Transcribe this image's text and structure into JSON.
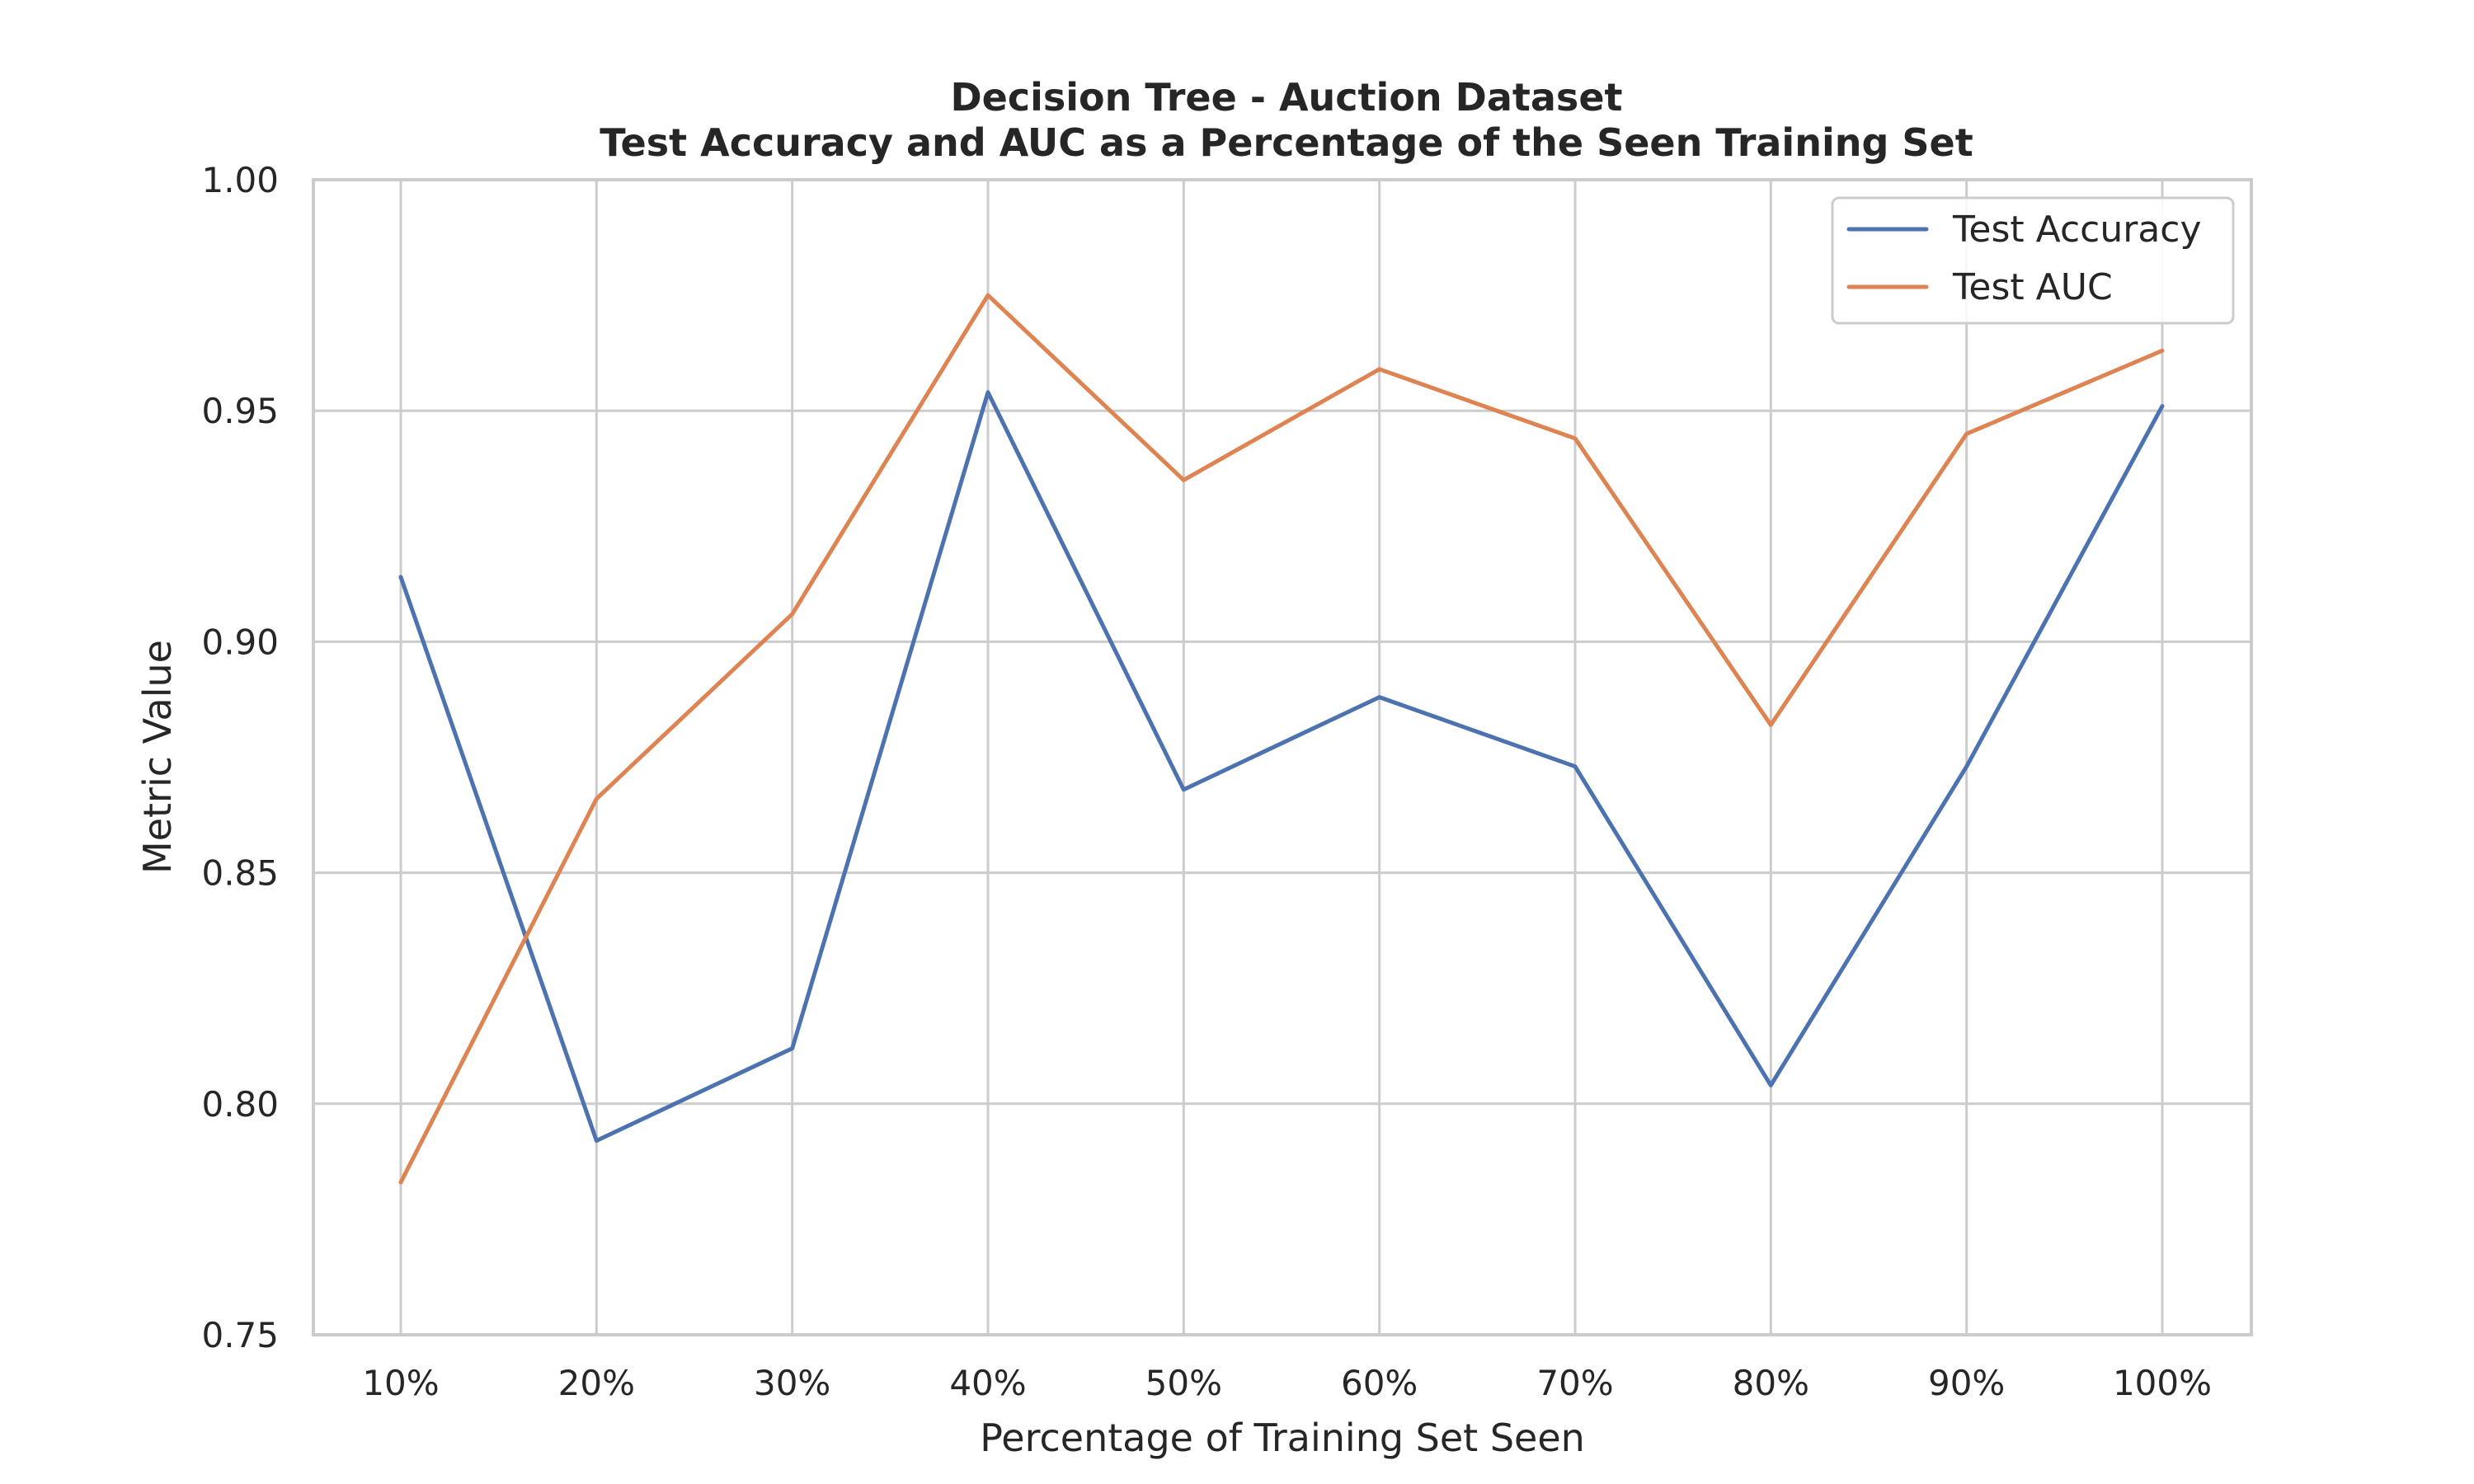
{
  "chart_data": {
    "type": "line",
    "title": "Decision Tree - Auction Dataset",
    "subtitle": "Test Accuracy and AUC as a Percentage of the Seen Training Set",
    "xlabel": "Percentage of Training Set Seen",
    "ylabel": "Metric Value",
    "categories": [
      "10%",
      "20%",
      "30%",
      "40%",
      "50%",
      "60%",
      "70%",
      "80%",
      "90%",
      "100%"
    ],
    "ylim": [
      0.75,
      1.0
    ],
    "yticks": [
      "0.75",
      "0.80",
      "0.85",
      "0.90",
      "0.95",
      "1.00"
    ],
    "grid": true,
    "legend_position": "top-right",
    "series": [
      {
        "name": "Test Accuracy",
        "color": "#4c72b0",
        "values": [
          0.914,
          0.792,
          0.812,
          0.954,
          0.868,
          0.888,
          0.873,
          0.804,
          0.873,
          0.951
        ]
      },
      {
        "name": "Test AUC",
        "color": "#dd8452",
        "values": [
          0.783,
          0.866,
          0.906,
          0.975,
          0.935,
          0.959,
          0.944,
          0.882,
          0.945,
          0.963
        ]
      }
    ]
  }
}
